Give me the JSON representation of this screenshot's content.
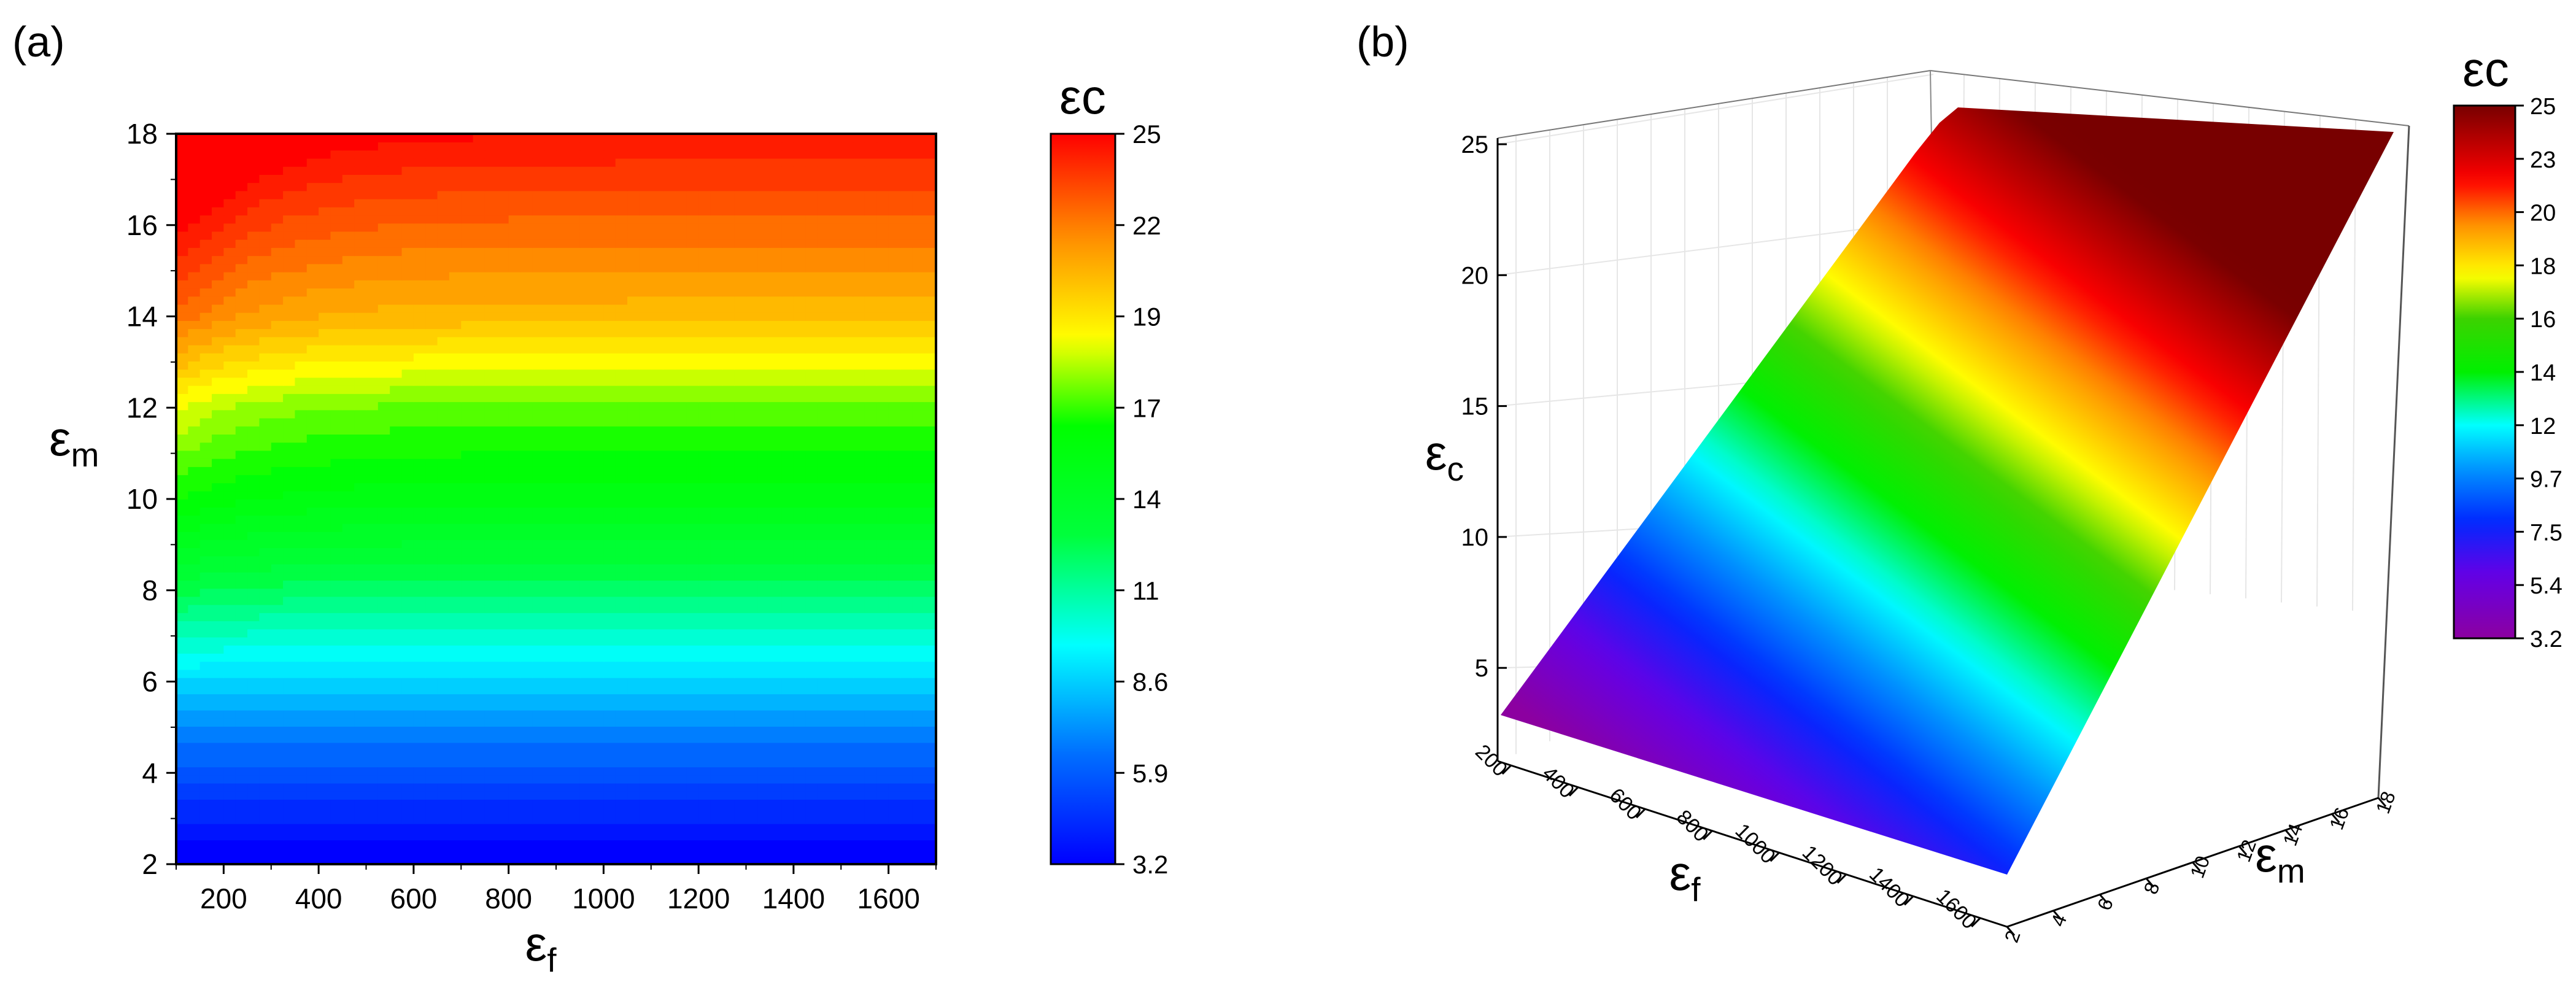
{
  "panels": {
    "a": {
      "label": "(a)"
    },
    "b": {
      "label": "(b)"
    }
  },
  "chart_data": [
    {
      "type": "heatmap",
      "panel": "(a)",
      "subtype": "filled-contour",
      "xlabel": "εf",
      "ylabel": "εm",
      "xlim": [
        100,
        1700
      ],
      "ylim": [
        2,
        18
      ],
      "x_ticks": [
        200,
        400,
        600,
        800,
        1000,
        1200,
        1400,
        1600
      ],
      "y_ticks": [
        2,
        4,
        6,
        8,
        10,
        12,
        14,
        16,
        18
      ],
      "colorbar": {
        "title": "εc",
        "ticks": [
          "25",
          "22",
          "19",
          "17",
          "14",
          "11",
          "8.6",
          "5.9",
          "3.2"
        ],
        "range": [
          3.2,
          25
        ]
      },
      "value_profile": {
        "em": [
          2,
          4,
          6,
          8,
          10,
          12,
          14,
          16,
          18
        ],
        "ec_at_high_ef": [
          3.2,
          5.9,
          9.0,
          12.5,
          15.5,
          17.5,
          21.0,
          23.0,
          25.0
        ]
      },
      "grid": false
    },
    {
      "type": "surface3d",
      "panel": "(b)",
      "xlabel": "εf",
      "ylabel": "εm",
      "zlabel": "εc",
      "x_ticks": [
        "200",
        "400",
        "600",
        "800",
        "1000",
        "1200",
        "1400",
        "1600"
      ],
      "y_ticks": [
        "2",
        "4",
        "6",
        "8",
        "10",
        "12",
        "14",
        "16",
        "18"
      ],
      "z_ticks": [
        "5",
        "10",
        "15",
        "20",
        "25"
      ],
      "zlim": [
        3.2,
        25
      ],
      "colorbar": {
        "title": "εc",
        "ticks": [
          "25",
          "23",
          "20",
          "18",
          "16",
          "14",
          "12",
          "9.7",
          "7.5",
          "5.4",
          "3.2"
        ],
        "range": [
          3.2,
          25
        ]
      },
      "grid": true
    }
  ]
}
